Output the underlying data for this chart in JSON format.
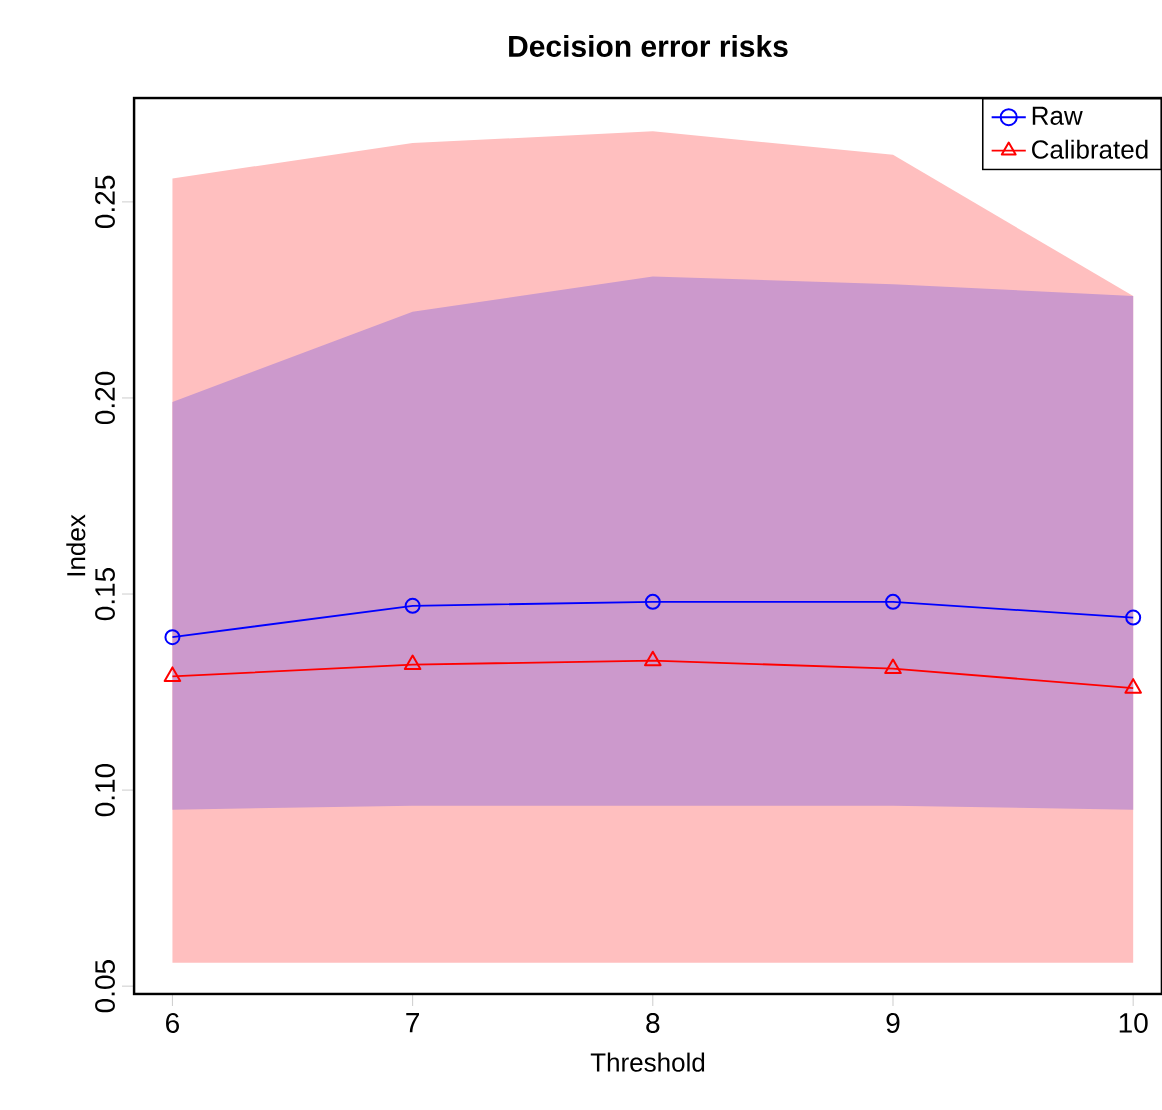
{
  "chart_data": {
    "type": "line",
    "title": "Decision error risks",
    "xlabel": "Threshold",
    "ylabel": "Index",
    "x": [
      6,
      7,
      8,
      9,
      10
    ],
    "series": [
      {
        "name": "Raw",
        "color": "#0000ff",
        "marker": "circle",
        "values": [
          0.139,
          0.147,
          0.148,
          0.148,
          0.144
        ],
        "lower": [
          0.095,
          0.096,
          0.096,
          0.096,
          0.095
        ],
        "upper": [
          0.199,
          0.222,
          0.231,
          0.229,
          0.226
        ]
      },
      {
        "name": "Calibrated",
        "color": "#ff0000",
        "marker": "triangle",
        "values": [
          0.129,
          0.132,
          0.133,
          0.131,
          0.126
        ],
        "lower": [
          0.056,
          0.056,
          0.056,
          0.056,
          0.056
        ],
        "upper": [
          0.256,
          0.265,
          0.268,
          0.262,
          0.226
        ]
      }
    ],
    "xlim": [
      5.84,
      10.12
    ],
    "ylim": [
      0.048,
      0.2765
    ],
    "xticks": [
      6,
      7,
      8,
      9,
      10
    ],
    "yticks": [
      0.05,
      {
        "value": 0.1,
        "label": "0.10"
      },
      0.15,
      {
        "value": 0.2,
        "label": "0.20"
      },
      0.25
    ],
    "legend": "top right",
    "grid": false
  }
}
